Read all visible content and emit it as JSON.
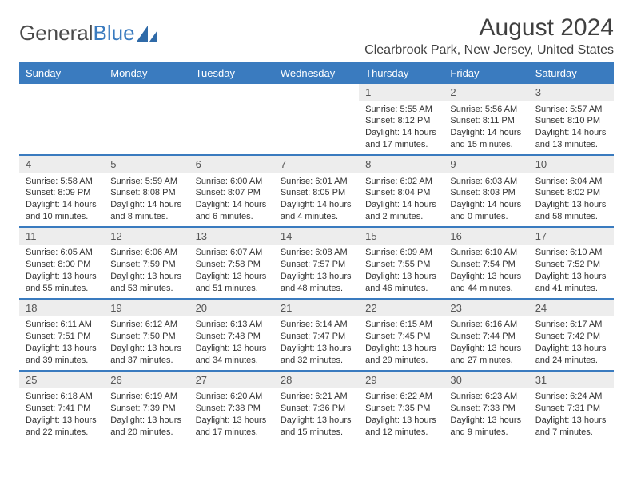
{
  "logo": {
    "text1": "General",
    "text2": "Blue"
  },
  "title": "August 2024",
  "location": "Clearbrook Park, New Jersey, United States",
  "colors": {
    "header_bg": "#3a7bbf",
    "header_text": "#ffffff",
    "daynum_bg": "#ededed",
    "divider": "#3a7bbf",
    "page_bg": "#ffffff",
    "text": "#333333",
    "title_text": "#404040"
  },
  "day_headers": [
    "Sunday",
    "Monday",
    "Tuesday",
    "Wednesday",
    "Thursday",
    "Friday",
    "Saturday"
  ],
  "weeks": [
    [
      {
        "n": "",
        "sunrise": "",
        "sunset": "",
        "daylight": ""
      },
      {
        "n": "",
        "sunrise": "",
        "sunset": "",
        "daylight": ""
      },
      {
        "n": "",
        "sunrise": "",
        "sunset": "",
        "daylight": ""
      },
      {
        "n": "",
        "sunrise": "",
        "sunset": "",
        "daylight": ""
      },
      {
        "n": "1",
        "sunrise": "Sunrise: 5:55 AM",
        "sunset": "Sunset: 8:12 PM",
        "daylight": "Daylight: 14 hours and 17 minutes."
      },
      {
        "n": "2",
        "sunrise": "Sunrise: 5:56 AM",
        "sunset": "Sunset: 8:11 PM",
        "daylight": "Daylight: 14 hours and 15 minutes."
      },
      {
        "n": "3",
        "sunrise": "Sunrise: 5:57 AM",
        "sunset": "Sunset: 8:10 PM",
        "daylight": "Daylight: 14 hours and 13 minutes."
      }
    ],
    [
      {
        "n": "4",
        "sunrise": "Sunrise: 5:58 AM",
        "sunset": "Sunset: 8:09 PM",
        "daylight": "Daylight: 14 hours and 10 minutes."
      },
      {
        "n": "5",
        "sunrise": "Sunrise: 5:59 AM",
        "sunset": "Sunset: 8:08 PM",
        "daylight": "Daylight: 14 hours and 8 minutes."
      },
      {
        "n": "6",
        "sunrise": "Sunrise: 6:00 AM",
        "sunset": "Sunset: 8:07 PM",
        "daylight": "Daylight: 14 hours and 6 minutes."
      },
      {
        "n": "7",
        "sunrise": "Sunrise: 6:01 AM",
        "sunset": "Sunset: 8:05 PM",
        "daylight": "Daylight: 14 hours and 4 minutes."
      },
      {
        "n": "8",
        "sunrise": "Sunrise: 6:02 AM",
        "sunset": "Sunset: 8:04 PM",
        "daylight": "Daylight: 14 hours and 2 minutes."
      },
      {
        "n": "9",
        "sunrise": "Sunrise: 6:03 AM",
        "sunset": "Sunset: 8:03 PM",
        "daylight": "Daylight: 14 hours and 0 minutes."
      },
      {
        "n": "10",
        "sunrise": "Sunrise: 6:04 AM",
        "sunset": "Sunset: 8:02 PM",
        "daylight": "Daylight: 13 hours and 58 minutes."
      }
    ],
    [
      {
        "n": "11",
        "sunrise": "Sunrise: 6:05 AM",
        "sunset": "Sunset: 8:00 PM",
        "daylight": "Daylight: 13 hours and 55 minutes."
      },
      {
        "n": "12",
        "sunrise": "Sunrise: 6:06 AM",
        "sunset": "Sunset: 7:59 PM",
        "daylight": "Daylight: 13 hours and 53 minutes."
      },
      {
        "n": "13",
        "sunrise": "Sunrise: 6:07 AM",
        "sunset": "Sunset: 7:58 PM",
        "daylight": "Daylight: 13 hours and 51 minutes."
      },
      {
        "n": "14",
        "sunrise": "Sunrise: 6:08 AM",
        "sunset": "Sunset: 7:57 PM",
        "daylight": "Daylight: 13 hours and 48 minutes."
      },
      {
        "n": "15",
        "sunrise": "Sunrise: 6:09 AM",
        "sunset": "Sunset: 7:55 PM",
        "daylight": "Daylight: 13 hours and 46 minutes."
      },
      {
        "n": "16",
        "sunrise": "Sunrise: 6:10 AM",
        "sunset": "Sunset: 7:54 PM",
        "daylight": "Daylight: 13 hours and 44 minutes."
      },
      {
        "n": "17",
        "sunrise": "Sunrise: 6:10 AM",
        "sunset": "Sunset: 7:52 PM",
        "daylight": "Daylight: 13 hours and 41 minutes."
      }
    ],
    [
      {
        "n": "18",
        "sunrise": "Sunrise: 6:11 AM",
        "sunset": "Sunset: 7:51 PM",
        "daylight": "Daylight: 13 hours and 39 minutes."
      },
      {
        "n": "19",
        "sunrise": "Sunrise: 6:12 AM",
        "sunset": "Sunset: 7:50 PM",
        "daylight": "Daylight: 13 hours and 37 minutes."
      },
      {
        "n": "20",
        "sunrise": "Sunrise: 6:13 AM",
        "sunset": "Sunset: 7:48 PM",
        "daylight": "Daylight: 13 hours and 34 minutes."
      },
      {
        "n": "21",
        "sunrise": "Sunrise: 6:14 AM",
        "sunset": "Sunset: 7:47 PM",
        "daylight": "Daylight: 13 hours and 32 minutes."
      },
      {
        "n": "22",
        "sunrise": "Sunrise: 6:15 AM",
        "sunset": "Sunset: 7:45 PM",
        "daylight": "Daylight: 13 hours and 29 minutes."
      },
      {
        "n": "23",
        "sunrise": "Sunrise: 6:16 AM",
        "sunset": "Sunset: 7:44 PM",
        "daylight": "Daylight: 13 hours and 27 minutes."
      },
      {
        "n": "24",
        "sunrise": "Sunrise: 6:17 AM",
        "sunset": "Sunset: 7:42 PM",
        "daylight": "Daylight: 13 hours and 24 minutes."
      }
    ],
    [
      {
        "n": "25",
        "sunrise": "Sunrise: 6:18 AM",
        "sunset": "Sunset: 7:41 PM",
        "daylight": "Daylight: 13 hours and 22 minutes."
      },
      {
        "n": "26",
        "sunrise": "Sunrise: 6:19 AM",
        "sunset": "Sunset: 7:39 PM",
        "daylight": "Daylight: 13 hours and 20 minutes."
      },
      {
        "n": "27",
        "sunrise": "Sunrise: 6:20 AM",
        "sunset": "Sunset: 7:38 PM",
        "daylight": "Daylight: 13 hours and 17 minutes."
      },
      {
        "n": "28",
        "sunrise": "Sunrise: 6:21 AM",
        "sunset": "Sunset: 7:36 PM",
        "daylight": "Daylight: 13 hours and 15 minutes."
      },
      {
        "n": "29",
        "sunrise": "Sunrise: 6:22 AM",
        "sunset": "Sunset: 7:35 PM",
        "daylight": "Daylight: 13 hours and 12 minutes."
      },
      {
        "n": "30",
        "sunrise": "Sunrise: 6:23 AM",
        "sunset": "Sunset: 7:33 PM",
        "daylight": "Daylight: 13 hours and 9 minutes."
      },
      {
        "n": "31",
        "sunrise": "Sunrise: 6:24 AM",
        "sunset": "Sunset: 7:31 PM",
        "daylight": "Daylight: 13 hours and 7 minutes."
      }
    ]
  ]
}
